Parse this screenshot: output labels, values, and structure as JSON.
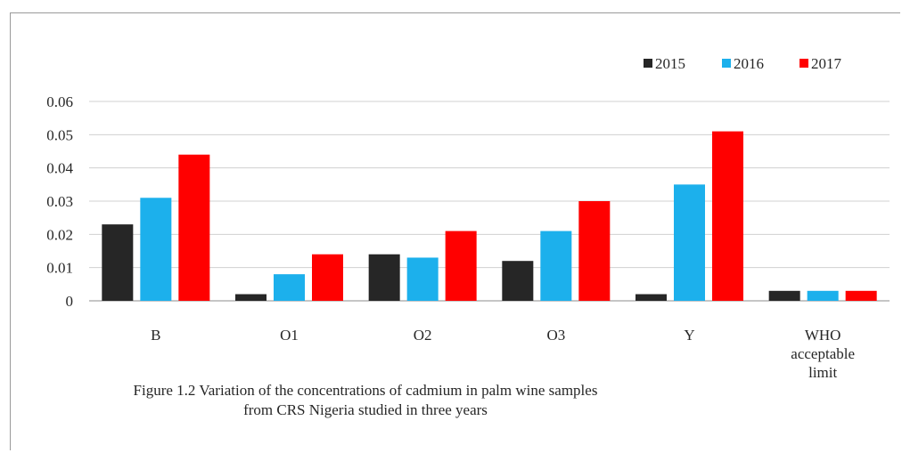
{
  "chart_data": {
    "type": "bar",
    "title": "",
    "xlabel": "",
    "ylabel": "",
    "categories": [
      "B",
      "O1",
      "O2",
      "O3",
      "Y",
      "WHO acceptable limit"
    ],
    "category_label_lines": [
      [
        "B"
      ],
      [
        "O1"
      ],
      [
        "O2"
      ],
      [
        "O3"
      ],
      [
        "Y"
      ],
      [
        "WHO",
        "acceptable",
        "limit"
      ]
    ],
    "series": [
      {
        "name": "2015",
        "color": "#262626",
        "values": [
          0.023,
          0.002,
          0.014,
          0.012,
          0.002,
          0.003
        ]
      },
      {
        "name": "2016",
        "color": "#1cb0ec",
        "values": [
          0.031,
          0.008,
          0.013,
          0.021,
          0.035,
          0.003
        ]
      },
      {
        "name": "2017",
        "color": "#ff0000",
        "values": [
          0.044,
          0.014,
          0.021,
          0.03,
          0.051,
          0.003
        ]
      }
    ],
    "ylim": [
      0,
      0.06
    ],
    "yticks": [
      "0",
      "0.01",
      "0.02",
      "0.03",
      "0.04",
      "0.05",
      "0.06"
    ],
    "grid": true,
    "legend_position": "top-right"
  },
  "caption": {
    "line1": "Figure 1.2 Variation of the concentrations of cadmium in palm wine samples",
    "line2": "from CRS Nigeria studied in three years"
  }
}
